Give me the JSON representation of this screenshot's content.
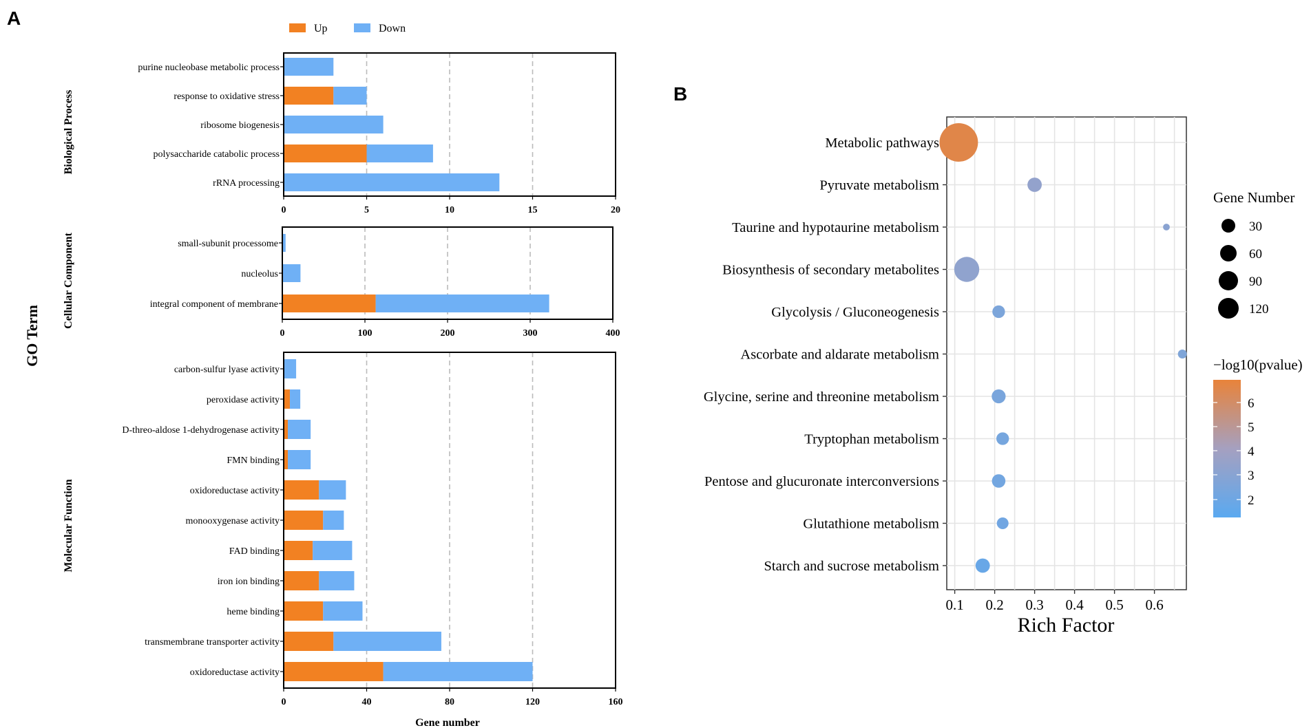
{
  "colors": {
    "up": "#f28122",
    "down": "#6fb0f5",
    "grad_high": "#e8833a",
    "grad_mid": "#a5a0c0",
    "grad_low": "#5aa9f0",
    "dot_gray": "#8f96b8",
    "frame": "#000000",
    "grid": "#bbbbbb"
  },
  "panel_a": {
    "label": "A",
    "y_title": "GO Term",
    "x_title": "Gene number",
    "legend": {
      "up": "Up",
      "down": "Down"
    },
    "facets": [
      {
        "name": "Biological Process",
        "xticks": [
          "0",
          "5",
          "10",
          "15",
          "20"
        ],
        "xlim": [
          0,
          20
        ]
      },
      {
        "name": "Cellular Component",
        "xticks": [
          "0",
          "100",
          "200",
          "300",
          "400"
        ],
        "xlim": [
          0,
          400
        ]
      },
      {
        "name": "Molecular Function",
        "xticks": [
          "0",
          "40",
          "80",
          "120",
          "160"
        ],
        "xlim": [
          0,
          160
        ]
      }
    ]
  },
  "panel_b": {
    "label": "B",
    "x_title": "Rich Factor",
    "size_legend_title": "Gene Number",
    "size_legend": [
      "30",
      "60",
      "90",
      "120"
    ],
    "color_legend_title": "−log10(pvalue)",
    "color_legend_ticks": [
      "6",
      "5",
      "4",
      "3",
      "2"
    ],
    "xticks": [
      "0.1",
      "0.2",
      "0.3",
      "0.4",
      "0.5",
      "0.6"
    ]
  },
  "chart_data": [
    {
      "type": "bar",
      "orientation": "horizontal",
      "stacked": true,
      "title": "Biological Process",
      "xlabel": "Gene number",
      "xlim": [
        0,
        20
      ],
      "categories": [
        "purine nucleobase metabolic process",
        "response to oxidative stress",
        "ribosome biogenesis",
        "polysaccharide catabolic process",
        "rRNA processing"
      ],
      "series": [
        {
          "name": "Up",
          "values": [
            0,
            3,
            0,
            5,
            0
          ]
        },
        {
          "name": "Down",
          "values": [
            3,
            2,
            6,
            4,
            13
          ]
        }
      ]
    },
    {
      "type": "bar",
      "orientation": "horizontal",
      "stacked": true,
      "title": "Cellular Component",
      "xlabel": "Gene number",
      "xlim": [
        0,
        400
      ],
      "categories": [
        "small-subunit processome",
        "nucleolus",
        "integral component of membrane"
      ],
      "series": [
        {
          "name": "Up",
          "values": [
            0,
            0,
            113
          ]
        },
        {
          "name": "Down",
          "values": [
            4,
            22,
            210
          ]
        }
      ]
    },
    {
      "type": "bar",
      "orientation": "horizontal",
      "stacked": true,
      "title": "Molecular Function",
      "xlabel": "Gene number",
      "xlim": [
        0,
        160
      ],
      "categories": [
        "carbon-sulfur lyase activity",
        "peroxidase activity",
        "D-threo-aldose 1-dehydrogenase activity",
        "FMN binding",
        "oxidoreductase activity",
        "monooxygenase activity",
        "FAD binding",
        "iron ion binding",
        "heme binding",
        "transmembrane transporter activity",
        "oxidoreductase activity"
      ],
      "series": [
        {
          "name": "Up",
          "values": [
            0,
            3,
            2,
            2,
            17,
            19,
            14,
            17,
            19,
            24,
            48
          ]
        },
        {
          "name": "Down",
          "values": [
            6,
            5,
            11,
            11,
            13,
            10,
            19,
            17,
            19,
            52,
            72
          ]
        }
      ]
    },
    {
      "type": "scatter",
      "title": "",
      "xlabel": "Rich Factor",
      "ylabel": "",
      "xlim": [
        0.08,
        0.68
      ],
      "categories": [
        "Metabolic pathways",
        "Pyruvate metabolism",
        "Taurine and hypotaurine metabolism",
        "Biosynthesis of secondary metabolites",
        "Glycolysis / Gluconeogenesis",
        "Ascorbate and aldarate metabolism",
        "Glycine, serine and threonine metabolism",
        "Tryptophan metabolism",
        "Pentose and glucuronate interconversions",
        "Glutathione metabolism",
        "Starch and sucrose metabolism"
      ],
      "x": [
        0.11,
        0.3,
        0.63,
        0.13,
        0.21,
        0.67,
        0.21,
        0.22,
        0.21,
        0.22,
        0.17
      ],
      "gene_number": [
        130,
        18,
        4,
        55,
        14,
        7,
        17,
        14,
        16,
        12,
        18
      ],
      "neg_log10_pvalue": [
        6.5,
        3.5,
        3.2,
        3.4,
        2.7,
        2.8,
        2.6,
        2.5,
        2.4,
        2.3,
        2.0
      ]
    }
  ]
}
